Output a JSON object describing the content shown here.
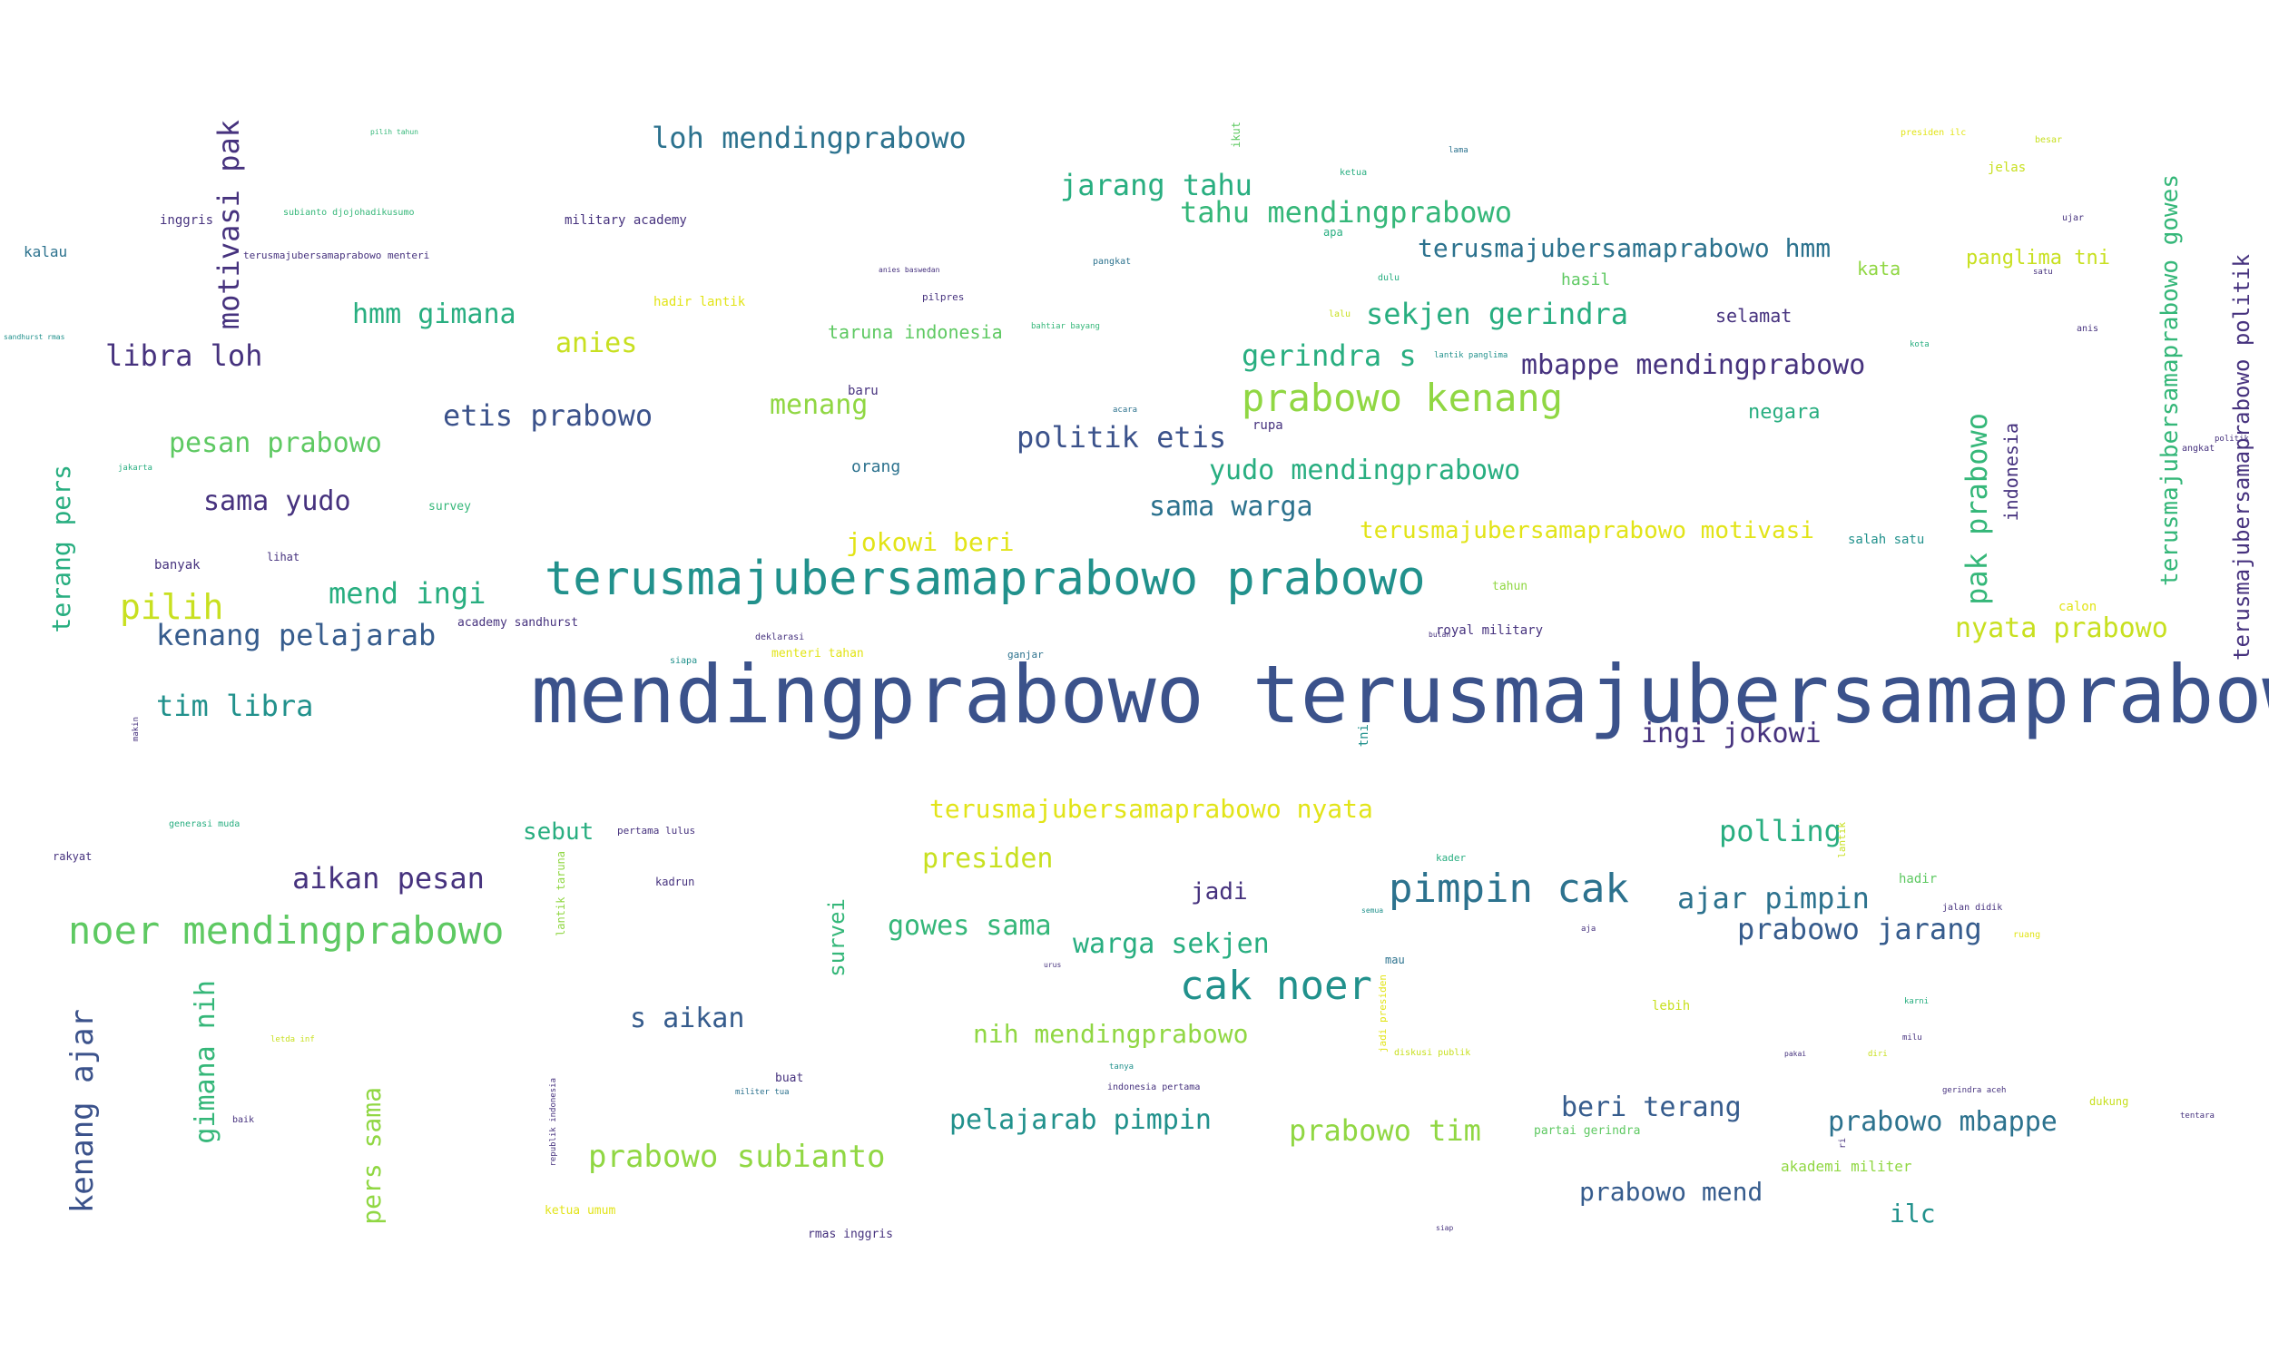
{
  "palette": {
    "deep_purple": "#46327e",
    "indigo": "#3b528b",
    "blue_teal": "#365c8d",
    "teal_blue": "#2c728e",
    "teal": "#21918c",
    "green_teal": "#28ae80",
    "green": "#35b779",
    "lime": "#5ec962",
    "yellow_green": "#90d743",
    "yellow": "#c8e020",
    "gold": "#e2e418"
  },
  "words": [
    {
      "text": "mendingprabowo terusmajubersamaprabowo",
      "color": "#3b528b"
    },
    {
      "text": "terusmajubersamaprabowo prabowo",
      "color": "#21918c"
    },
    {
      "text": "noer mendingprabowo",
      "color": "#5ec962"
    },
    {
      "text": "pimpin cak",
      "color": "#2c728e"
    },
    {
      "text": "cak noer",
      "color": "#21918c"
    },
    {
      "text": "prabowo kenang",
      "color": "#90d743"
    },
    {
      "text": "kenang ajar",
      "color": "#3b528b"
    },
    {
      "text": "motivasi pak",
      "color": "#46327e"
    },
    {
      "text": "pak prabowo",
      "color": "#35b779"
    },
    {
      "text": "terusmajubersamaprabowo gowes",
      "color": "#35b779"
    },
    {
      "text": "terusmajubersamaprabowo politik",
      "color": "#46327e"
    },
    {
      "text": "prabowo subianto",
      "color": "#90d743"
    },
    {
      "text": "pilih",
      "color": "#c8e020"
    },
    {
      "text": "terang pers",
      "color": "#28ae80"
    },
    {
      "text": "gimana nih",
      "color": "#35b779"
    },
    {
      "text": "pers sama",
      "color": "#90d743"
    },
    {
      "text": "loh mendingprabowo",
      "color": "#2c728e"
    },
    {
      "text": "jarang tahu",
      "color": "#28ae80"
    },
    {
      "text": "tahu mendingprabowo",
      "color": "#35b779"
    },
    {
      "text": "terusmajubersamaprabowo hmm",
      "color": "#2c728e"
    },
    {
      "text": "sekjen gerindra",
      "color": "#28ae80"
    },
    {
      "text": "gerindra s",
      "color": "#28ae80"
    },
    {
      "text": "mbappe mendingprabowo",
      "color": "#46327e"
    },
    {
      "text": "hmm gimana",
      "color": "#28ae80"
    },
    {
      "text": "libra loh",
      "color": "#46327e"
    },
    {
      "text": "anies",
      "color": "#c8e020"
    },
    {
      "text": "etis prabowo",
      "color": "#3b528b"
    },
    {
      "text": "menang",
      "color": "#90d743"
    },
    {
      "text": "politik etis",
      "color": "#3b528b"
    },
    {
      "text": "yudo mendingprabowo",
      "color": "#28ae80"
    },
    {
      "text": "pesan prabowo",
      "color": "#5ec962"
    },
    {
      "text": "sama yudo",
      "color": "#46327e"
    },
    {
      "text": "sama warga",
      "color": "#2c728e"
    },
    {
      "text": "terusmajubersamaprabowo motivasi",
      "color": "#e2e418"
    },
    {
      "text": "jokowi beri",
      "color": "#e2e418"
    },
    {
      "text": "mend ingi",
      "color": "#28ae80"
    },
    {
      "text": "kenang pelajarab",
      "color": "#365c8d"
    },
    {
      "text": "nyata prabowo",
      "color": "#c8e020"
    },
    {
      "text": "tim libra",
      "color": "#21918c"
    },
    {
      "text": "ingi jokowi",
      "color": "#46327e"
    },
    {
      "text": "terusmajubersamaprabowo nyata",
      "color": "#e2e418"
    },
    {
      "text": "presiden",
      "color": "#c8e020"
    },
    {
      "text": "polling",
      "color": "#28ae80"
    },
    {
      "text": "aikan pesan",
      "color": "#46327e"
    },
    {
      "text": "sebut",
      "color": "#28ae80"
    },
    {
      "text": "ajar pimpin",
      "color": "#2c728e"
    },
    {
      "text": "prabowo jarang",
      "color": "#365c8d"
    },
    {
      "text": "gowes sama",
      "color": "#35b779"
    },
    {
      "text": "warga sekjen",
      "color": "#28ae80"
    },
    {
      "text": "jadi",
      "color": "#46327e"
    },
    {
      "text": "s aikan",
      "color": "#365c8d"
    },
    {
      "text": "nih mendingprabowo",
      "color": "#90d743"
    },
    {
      "text": "pelajarab pimpin",
      "color": "#21918c"
    },
    {
      "text": "prabowo tim",
      "color": "#90d743"
    },
    {
      "text": "beri terang",
      "color": "#365c8d"
    },
    {
      "text": "prabowo mbappe",
      "color": "#2c728e"
    },
    {
      "text": "prabowo mend",
      "color": "#365c8d"
    },
    {
      "text": "ilc",
      "color": "#21918c"
    },
    {
      "text": "survei",
      "color": "#35b779"
    },
    {
      "text": "panglima tni",
      "color": "#c8e020"
    },
    {
      "text": "kata",
      "color": "#90d743"
    },
    {
      "text": "hasil",
      "color": "#5ec962"
    },
    {
      "text": "selamat",
      "color": "#46327e"
    },
    {
      "text": "negara",
      "color": "#28ae80"
    },
    {
      "text": "indonesia",
      "color": "#46327e"
    },
    {
      "text": "orang",
      "color": "#2c728e"
    },
    {
      "text": "baru",
      "color": "#46327e"
    },
    {
      "text": "taruna indonesia",
      "color": "#5ec962"
    },
    {
      "text": "military academy",
      "color": "#46327e"
    },
    {
      "text": "hadir lantik",
      "color": "#e2e418"
    },
    {
      "text": "inggris",
      "color": "#46327e"
    },
    {
      "text": "kalau",
      "color": "#2c728e"
    },
    {
      "text": "subianto djojohadikusumo",
      "color": "#35b779"
    },
    {
      "text": "terusmajubersamaprabowo menteri",
      "color": "#46327e"
    },
    {
      "text": "pilih tahun",
      "color": "#35b779"
    },
    {
      "text": "ikut",
      "color": "#5ec962"
    },
    {
      "text": "ketua",
      "color": "#28ae80"
    },
    {
      "text": "lama",
      "color": "#2c728e"
    },
    {
      "text": "presiden ilc",
      "color": "#e2e418"
    },
    {
      "text": "besar",
      "color": "#c8e020"
    },
    {
      "text": "jelas",
      "color": "#c8e020"
    },
    {
      "text": "ujar",
      "color": "#46327e"
    },
    {
      "text": "anis",
      "color": "#46327e"
    },
    {
      "text": "satu",
      "color": "#46327e"
    },
    {
      "text": "kota",
      "color": "#28ae80"
    },
    {
      "text": "apa",
      "color": "#28ae80"
    },
    {
      "text": "pangkat",
      "color": "#2c728e"
    },
    {
      "text": "anies baswedan",
      "color": "#46327e"
    },
    {
      "text": "pilpres",
      "color": "#46327e"
    },
    {
      "text": "dulu",
      "color": "#28ae80"
    },
    {
      "text": "lalu",
      "color": "#c8e020"
    },
    {
      "text": "lantik panglima",
      "color": "#21918c"
    },
    {
      "text": "bahtiar bayang",
      "color": "#35b779"
    },
    {
      "text": "acara",
      "color": "#2c728e"
    },
    {
      "text": "rupa",
      "color": "#46327e"
    },
    {
      "text": "survey",
      "color": "#35b779"
    },
    {
      "text": "banyak",
      "color": "#46327e"
    },
    {
      "text": "lihat",
      "color": "#46327e"
    },
    {
      "text": "academy sandhurst",
      "color": "#46327e"
    },
    {
      "text": "tahun",
      "color": "#90d743"
    },
    {
      "text": "royal military",
      "color": "#46327e"
    },
    {
      "text": "salah satu",
      "color": "#21918c"
    },
    {
      "text": "calon",
      "color": "#e2e418"
    },
    {
      "text": "deklarasi",
      "color": "#46327e"
    },
    {
      "text": "menteri tahan",
      "color": "#e2e418"
    },
    {
      "text": "ganjar",
      "color": "#2c728e"
    },
    {
      "text": "siapa",
      "color": "#21918c"
    },
    {
      "text": "tni",
      "color": "#21918c"
    },
    {
      "text": "generasi muda",
      "color": "#28ae80"
    },
    {
      "text": "rakyat",
      "color": "#46327e"
    },
    {
      "text": "pertama lulus",
      "color": "#46327e"
    },
    {
      "text": "kadrun",
      "color": "#46327e"
    },
    {
      "text": "lantik taruna",
      "color": "#90d743"
    },
    {
      "text": "kader",
      "color": "#28ae80"
    },
    {
      "text": "hadir",
      "color": "#5ec962"
    },
    {
      "text": "jalan didik",
      "color": "#46327e"
    },
    {
      "text": "lantik",
      "color": "#c8e020"
    },
    {
      "text": "mau",
      "color": "#2c728e"
    },
    {
      "text": "jadi presiden",
      "color": "#e2e418"
    },
    {
      "text": "lebih",
      "color": "#c8e020"
    },
    {
      "text": "buat",
      "color": "#46327e"
    },
    {
      "text": "militer tua",
      "color": "#2c728e"
    },
    {
      "text": "indonesia pertama",
      "color": "#46327e"
    },
    {
      "text": "tanya",
      "color": "#21918c"
    },
    {
      "text": "partai gerindra",
      "color": "#5ec962"
    },
    {
      "text": "akademi militer",
      "color": "#90d743"
    },
    {
      "text": "dukung",
      "color": "#c8e020"
    },
    {
      "text": "gerindra aceh",
      "color": "#46327e"
    },
    {
      "text": "ketua umum",
      "color": "#e2e418"
    },
    {
      "text": "rmas inggris",
      "color": "#46327e"
    },
    {
      "text": "republik indonesia",
      "color": "#46327e"
    },
    {
      "text": "baik",
      "color": "#46327e"
    },
    {
      "text": "letda inf",
      "color": "#c8e020"
    },
    {
      "text": "makin",
      "color": "#46327e"
    },
    {
      "text": "jakarta",
      "color": "#28ae80"
    },
    {
      "text": "sandhurst rmas",
      "color": "#21918c"
    },
    {
      "text": "tentara",
      "color": "#46327e"
    },
    {
      "text": "angkat",
      "color": "#46327e"
    },
    {
      "text": "politik",
      "color": "#46327e"
    },
    {
      "text": "diskusi publik",
      "color": "#c8e020"
    },
    {
      "text": "karni",
      "color": "#28ae80"
    },
    {
      "text": "milu",
      "color": "#46327e"
    },
    {
      "text": "ruang",
      "color": "#e2e418"
    },
    {
      "text": "siap",
      "color": "#46327e"
    },
    {
      "text": "aja",
      "color": "#46327e"
    },
    {
      "text": "semua",
      "color": "#21918c"
    },
    {
      "text": "urus",
      "color": "#46327e"
    },
    {
      "text": "bulan",
      "color": "#46327e"
    },
    {
      "text": "ri",
      "color": "#46327e"
    },
    {
      "text": "diri",
      "color": "#c8e020"
    },
    {
      "text": "pakai",
      "color": "#46327e"
    }
  ]
}
